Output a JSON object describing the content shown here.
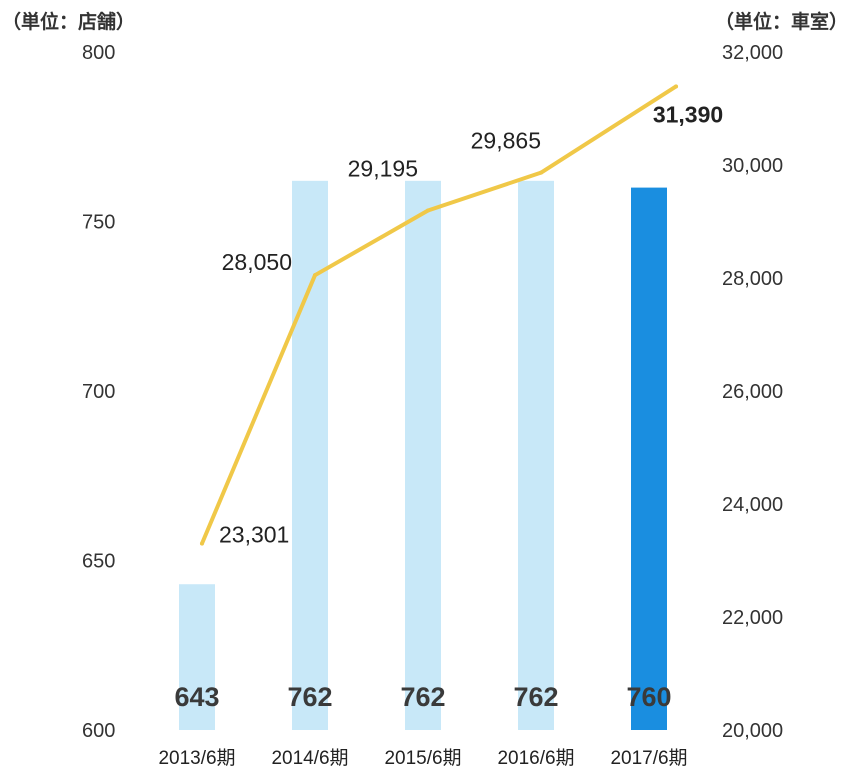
{
  "chart_data": {
    "type": "bar",
    "categories": [
      "2013/6期",
      "2014/6期",
      "2015/6期",
      "2016/6期",
      "2017/6期"
    ],
    "series": [
      {
        "type": "bar",
        "axis": "left",
        "values": [
          643,
          762,
          762,
          762,
          760
        ],
        "value_labels": [
          "643",
          "762",
          "762",
          "762",
          "760"
        ],
        "color": "#c8e8f8",
        "highlight_color": "#1a8ee0",
        "highlight_index": 4
      },
      {
        "type": "line",
        "axis": "right",
        "values": [
          23301,
          28050,
          29195,
          29865,
          31390
        ],
        "value_labels": [
          "23,301",
          "28,050",
          "29,195",
          "29,865",
          "31,390"
        ],
        "color": "#f0c848",
        "emphasis_index": 4
      }
    ],
    "left_axis": {
      "unit": "（単位：店舗）",
      "ylim": [
        600,
        800
      ],
      "ticks": [
        600,
        650,
        700,
        750,
        800
      ],
      "tick_labels": [
        "600",
        "650",
        "700",
        "750",
        "800"
      ]
    },
    "right_axis": {
      "unit": "（単位：車室）",
      "ylim": [
        20000,
        32000
      ],
      "ticks": [
        20000,
        22000,
        24000,
        26000,
        28000,
        30000,
        32000
      ],
      "tick_labels": [
        "20,000",
        "22,000",
        "24,000",
        "26,000",
        "28,000",
        "30,000",
        "32,000"
      ]
    },
    "grid": false,
    "legend": "none"
  }
}
